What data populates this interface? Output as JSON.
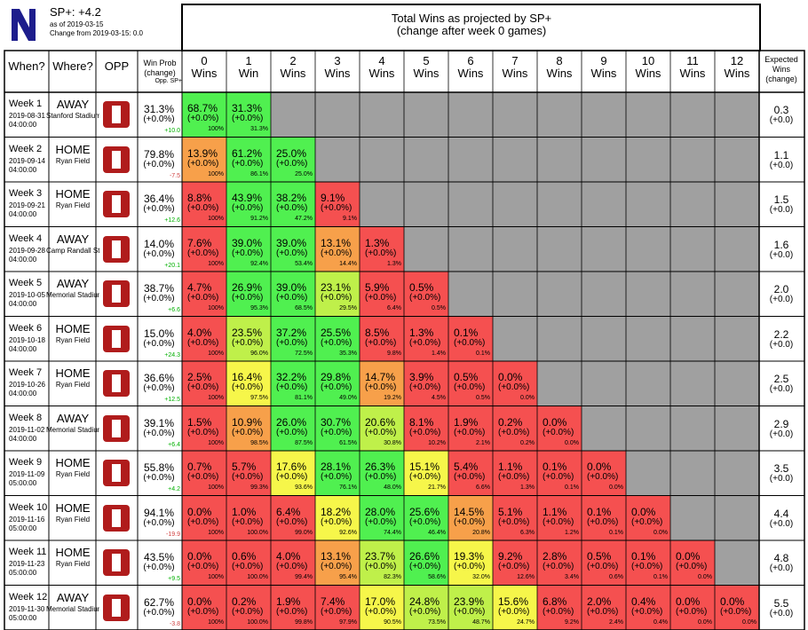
{
  "header": {
    "rating_label": "SP+: +4.2",
    "as_of": "as of 2019-03-15",
    "change_from": "Change from 2019-03-15: 0.0",
    "title_line1": "Total Wins as projected by SP+",
    "title_line2": "(change after week 0 games)"
  },
  "columns": {
    "when": "When?",
    "where": "Where?",
    "opp": "OPP",
    "winprob_line1": "Win Prob",
    "winprob_line2": "(change)",
    "winprob_line3": "Opp. SP+",
    "expected_line1": "Expected",
    "expected_line2": "Wins",
    "expected_line3": "(change)",
    "win_headers": [
      [
        "0",
        "Wins"
      ],
      [
        "1",
        "Win"
      ],
      [
        "2",
        "Wins"
      ],
      [
        "3",
        "Wins"
      ],
      [
        "4",
        "Wins"
      ],
      [
        "5",
        "Wins"
      ],
      [
        "6",
        "Wins"
      ],
      [
        "7",
        "Wins"
      ],
      [
        "8",
        "Wins"
      ],
      [
        "9",
        "Wins"
      ],
      [
        "10",
        "Wins"
      ],
      [
        "11",
        "Wins"
      ],
      [
        "12",
        "Wins"
      ]
    ]
  },
  "colors": {
    "red": "#f55050",
    "orange": "#f7a04a",
    "yellow": "#f6f64a",
    "lightgreen": "#bff04a",
    "green": "#50f050",
    "empty": "#a0a0a0",
    "positive_text": "#00b000",
    "negative_text": "#d04040"
  },
  "chart_data": {
    "type": "table",
    "games": [
      {
        "week": "Week 1",
        "date": "2019-08-31",
        "time": "04:00:00",
        "where": "AWAY",
        "venue": "Stanford Stadium",
        "opp_icon": "stanford-logo",
        "winprob": "31.3%",
        "winprob_change": "(+0.0%)",
        "opp_sp": "+10.0",
        "opp_sp_sign": "pos",
        "exp": "0.3",
        "exp_change": "(+0.0)",
        "cells": [
          [
            "68.7%",
            "100%"
          ],
          [
            "31.3%",
            "31.3%"
          ]
        ]
      },
      {
        "week": "Week 2",
        "date": "2019-09-14",
        "time": "04:00:00",
        "where": "HOME",
        "venue": "Ryan Field",
        "opp_icon": "unlv-logo",
        "winprob": "79.8%",
        "winprob_change": "(+0.0%)",
        "opp_sp": "-7.5",
        "opp_sp_sign": "neg",
        "exp": "1.1",
        "exp_change": "(+0.0)",
        "cells": [
          [
            "13.9%",
            "100%"
          ],
          [
            "61.2%",
            "86.1%"
          ],
          [
            "25.0%",
            "25.0%"
          ]
        ]
      },
      {
        "week": "Week 3",
        "date": "2019-09-21",
        "time": "04:00:00",
        "where": "HOME",
        "venue": "Ryan Field",
        "opp_icon": "michigan-state-logo",
        "winprob": "36.4%",
        "winprob_change": "(+0.0%)",
        "opp_sp": "+12.6",
        "opp_sp_sign": "pos",
        "exp": "1.5",
        "exp_change": "(+0.0)",
        "cells": [
          [
            "8.8%",
            "100%"
          ],
          [
            "43.9%",
            "91.2%"
          ],
          [
            "38.2%",
            "47.2%"
          ],
          [
            "9.1%",
            "9.1%"
          ]
        ]
      },
      {
        "week": "Week 4",
        "date": "2019-09-28",
        "time": "04:00:00",
        "where": "AWAY",
        "venue": "Camp Randall Stadium",
        "opp_icon": "wisconsin-logo",
        "winprob": "14.0%",
        "winprob_change": "(+0.0%)",
        "opp_sp": "+20.1",
        "opp_sp_sign": "pos",
        "exp": "1.6",
        "exp_change": "(+0.0)",
        "cells": [
          [
            "7.6%",
            "100%"
          ],
          [
            "39.0%",
            "92.4%"
          ],
          [
            "39.0%",
            "53.4%"
          ],
          [
            "13.1%",
            "14.4%"
          ],
          [
            "1.3%",
            "1.3%"
          ]
        ]
      },
      {
        "week": "Week 5",
        "date": "2019-10-05",
        "time": "04:00:00",
        "where": "AWAY",
        "venue": "Memorial Stadium",
        "opp_icon": "nebraska-logo",
        "winprob": "38.7%",
        "winprob_change": "(+0.0%)",
        "opp_sp": "+6.6",
        "opp_sp_sign": "pos",
        "exp": "2.0",
        "exp_change": "(+0.0)",
        "cells": [
          [
            "4.7%",
            "100%"
          ],
          [
            "26.9%",
            "95.3%"
          ],
          [
            "39.0%",
            "68.5%"
          ],
          [
            "23.1%",
            "29.5%"
          ],
          [
            "5.9%",
            "6.4%"
          ],
          [
            "0.5%",
            "0.5%"
          ]
        ]
      },
      {
        "week": "Week 6",
        "date": "2019-10-18",
        "time": "04:00:00",
        "where": "HOME",
        "venue": "Ryan Field",
        "opp_icon": "ohio-state-logo",
        "winprob": "15.0%",
        "winprob_change": "(+0.0%)",
        "opp_sp": "+24.3",
        "opp_sp_sign": "pos",
        "exp": "2.2",
        "exp_change": "(+0.0)",
        "cells": [
          [
            "4.0%",
            "100%"
          ],
          [
            "23.5%",
            "96.0%"
          ],
          [
            "37.2%",
            "72.5%"
          ],
          [
            "25.5%",
            "35.3%"
          ],
          [
            "8.5%",
            "9.8%"
          ],
          [
            "1.3%",
            "1.4%"
          ],
          [
            "0.1%",
            "0.1%"
          ]
        ]
      },
      {
        "week": "Week 7",
        "date": "2019-10-26",
        "time": "04:00:00",
        "where": "HOME",
        "venue": "Ryan Field",
        "opp_icon": "iowa-logo",
        "winprob": "36.6%",
        "winprob_change": "(+0.0%)",
        "opp_sp": "+12.5",
        "opp_sp_sign": "pos",
        "exp": "2.5",
        "exp_change": "(+0.0)",
        "cells": [
          [
            "2.5%",
            "100%"
          ],
          [
            "16.4%",
            "97.5%"
          ],
          [
            "32.2%",
            "81.1%"
          ],
          [
            "29.8%",
            "49.0%"
          ],
          [
            "14.7%",
            "19.2%"
          ],
          [
            "3.9%",
            "4.5%"
          ],
          [
            "0.5%",
            "0.5%"
          ],
          [
            "0.0%",
            "0.0%"
          ]
        ]
      },
      {
        "week": "Week 8",
        "date": "2019-11-02",
        "time": "04:00:00",
        "where": "AWAY",
        "venue": "Memorial Stadium",
        "opp_icon": "indiana-logo",
        "winprob": "39.1%",
        "winprob_change": "(+0.0%)",
        "opp_sp": "+6.4",
        "opp_sp_sign": "pos",
        "exp": "2.9",
        "exp_change": "(+0.0)",
        "cells": [
          [
            "1.5%",
            "100%"
          ],
          [
            "10.9%",
            "98.5%"
          ],
          [
            "26.0%",
            "87.5%"
          ],
          [
            "30.7%",
            "61.5%"
          ],
          [
            "20.6%",
            "30.8%"
          ],
          [
            "8.1%",
            "10.2%"
          ],
          [
            "1.9%",
            "2.1%"
          ],
          [
            "0.2%",
            "0.2%"
          ],
          [
            "0.0%",
            "0.0%"
          ]
        ]
      },
      {
        "week": "Week 9",
        "date": "2019-11-09",
        "time": "05:00:00",
        "where": "HOME",
        "venue": "Ryan Field",
        "opp_icon": "purdue-logo",
        "winprob": "55.8%",
        "winprob_change": "(+0.0%)",
        "opp_sp": "+4.2",
        "opp_sp_sign": "pos",
        "exp": "3.5",
        "exp_change": "(+0.0)",
        "cells": [
          [
            "0.7%",
            "100%"
          ],
          [
            "5.7%",
            "99.3%"
          ],
          [
            "17.6%",
            "93.6%"
          ],
          [
            "28.1%",
            "76.1%"
          ],
          [
            "26.3%",
            "48.0%"
          ],
          [
            "15.1%",
            "21.7%"
          ],
          [
            "5.4%",
            "6.6%"
          ],
          [
            "1.1%",
            "1.3%"
          ],
          [
            "0.1%",
            "0.1%"
          ],
          [
            "0.0%",
            "0.0%"
          ]
        ]
      },
      {
        "week": "Week 10",
        "date": "2019-11-16",
        "time": "05:00:00",
        "where": "HOME",
        "venue": "Ryan Field",
        "opp_icon": "umass-logo",
        "winprob": "94.1%",
        "winprob_change": "(+0.0%)",
        "opp_sp": "-19.9",
        "opp_sp_sign": "neg",
        "exp": "4.4",
        "exp_change": "(+0.0)",
        "cells": [
          [
            "0.0%",
            "100%"
          ],
          [
            "1.0%",
            "100.0%"
          ],
          [
            "6.4%",
            "99.0%"
          ],
          [
            "18.2%",
            "92.6%"
          ],
          [
            "28.0%",
            "74.4%"
          ],
          [
            "25.6%",
            "46.4%"
          ],
          [
            "14.5%",
            "20.8%"
          ],
          [
            "5.1%",
            "6.3%"
          ],
          [
            "1.1%",
            "1.2%"
          ],
          [
            "0.1%",
            "0.1%"
          ],
          [
            "0.0%",
            "0.0%"
          ]
        ]
      },
      {
        "week": "Week 11",
        "date": "2019-11-23",
        "time": "05:00:00",
        "where": "HOME",
        "venue": "Ryan Field",
        "opp_icon": "minnesota-logo",
        "winprob": "43.5%",
        "winprob_change": "(+0.0%)",
        "opp_sp": "+9.5",
        "opp_sp_sign": "pos",
        "exp": "4.8",
        "exp_change": "(+0.0)",
        "cells": [
          [
            "0.0%",
            "100%"
          ],
          [
            "0.6%",
            "100.0%"
          ],
          [
            "4.0%",
            "99.4%"
          ],
          [
            "13.1%",
            "95.4%"
          ],
          [
            "23.7%",
            "82.3%"
          ],
          [
            "26.6%",
            "58.6%"
          ],
          [
            "19.3%",
            "32.0%"
          ],
          [
            "9.2%",
            "12.6%"
          ],
          [
            "2.8%",
            "3.4%"
          ],
          [
            "0.5%",
            "0.6%"
          ],
          [
            "0.1%",
            "0.1%"
          ],
          [
            "0.0%",
            "0.0%"
          ]
        ]
      },
      {
        "week": "Week 12",
        "date": "2019-11-30",
        "time": "05:00:00",
        "where": "AWAY",
        "venue": "Memorial Stadium",
        "opp_icon": "illinois-logo",
        "winprob": "62.7%",
        "winprob_change": "(+0.0%)",
        "opp_sp": "-3.8",
        "opp_sp_sign": "neg",
        "exp": "5.5",
        "exp_change": "(+0.0)",
        "cells": [
          [
            "0.0%",
            "100%"
          ],
          [
            "0.2%",
            "100.0%"
          ],
          [
            "1.9%",
            "99.8%"
          ],
          [
            "7.4%",
            "97.9%"
          ],
          [
            "17.0%",
            "90.5%"
          ],
          [
            "24.8%",
            "73.5%"
          ],
          [
            "23.9%",
            "48.7%"
          ],
          [
            "15.6%",
            "24.7%"
          ],
          [
            "6.8%",
            "9.2%"
          ],
          [
            "2.0%",
            "2.4%"
          ],
          [
            "0.4%",
            "0.4%"
          ],
          [
            "0.0%",
            "0.0%"
          ],
          [
            "0.0%",
            "0.0%"
          ]
        ]
      }
    ]
  }
}
